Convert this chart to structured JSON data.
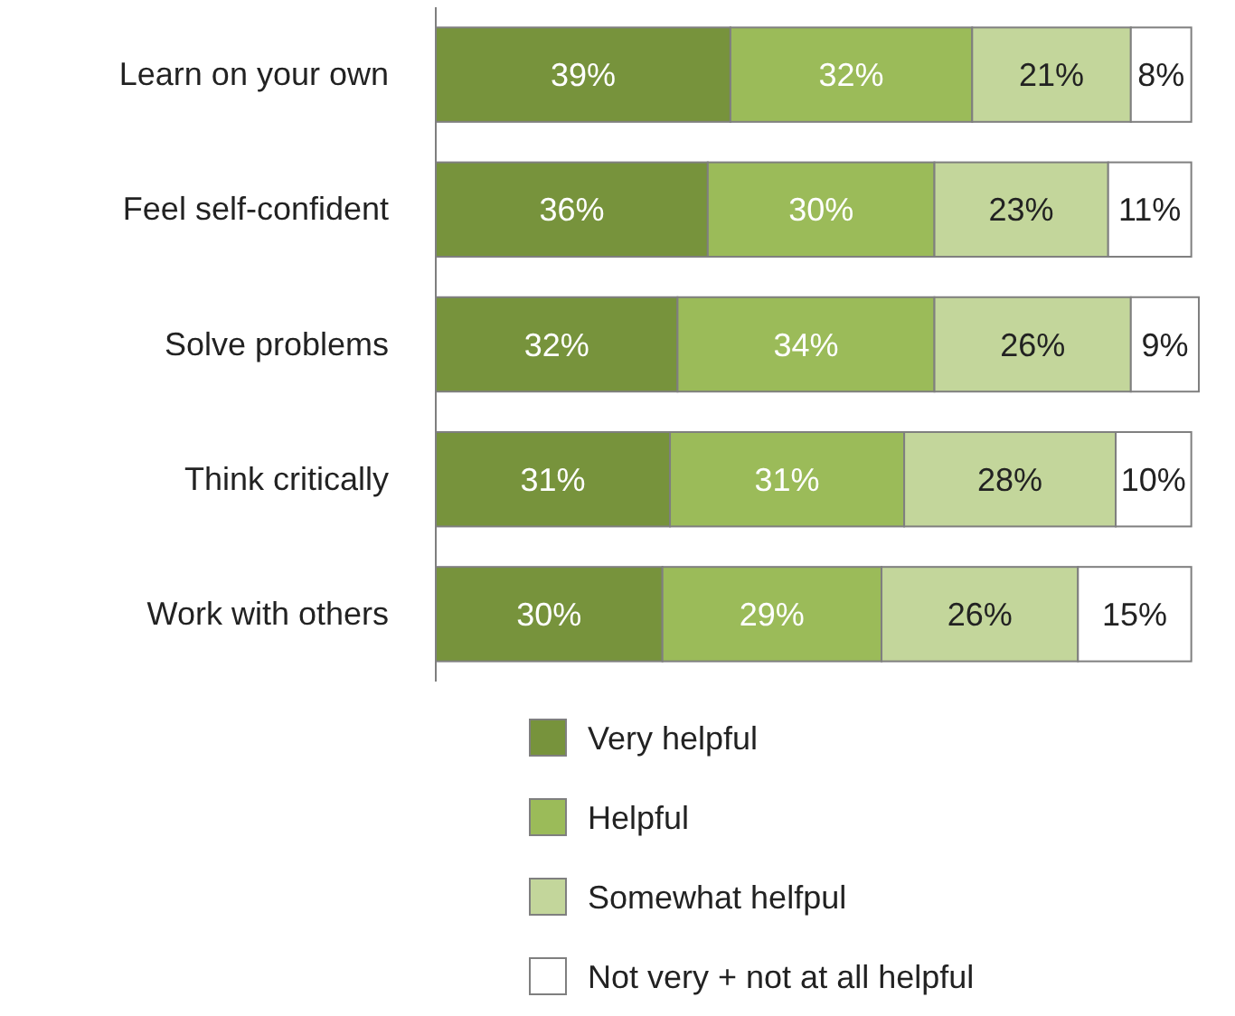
{
  "chart_data": {
    "type": "bar",
    "orientation": "horizontal",
    "stacked": true,
    "legend": "bottom",
    "tick_labels": "y",
    "categories": [
      "Learn on your own",
      "Feel self-confident",
      "Solve problems",
      "Think critically",
      "Work with others"
    ],
    "series": [
      {
        "name": "Very helpful",
        "color": "#77933c",
        "values": [
          39,
          36,
          32,
          31,
          30
        ],
        "value_labels": [
          "39%",
          "36%",
          "32%",
          "31%",
          "30%"
        ]
      },
      {
        "name": "Helpful",
        "color": "#9bbb59",
        "values": [
          32,
          30,
          34,
          31,
          29
        ],
        "value_labels": [
          "32%",
          "30%",
          "34%",
          "31%",
          "29%"
        ]
      },
      {
        "name": "Somewhat helfpul",
        "color": "#c3d69b",
        "values": [
          21,
          23,
          26,
          28,
          26
        ],
        "value_labels": [
          "21%",
          "23%",
          "26%",
          "28%",
          "26%"
        ]
      },
      {
        "name": "Not very + not at all helpful",
        "color": "#ffffff",
        "values": [
          8,
          11,
          9,
          10,
          15
        ],
        "value_labels": [
          "8%",
          "11%",
          "9%",
          "10%",
          "15%"
        ]
      }
    ]
  }
}
